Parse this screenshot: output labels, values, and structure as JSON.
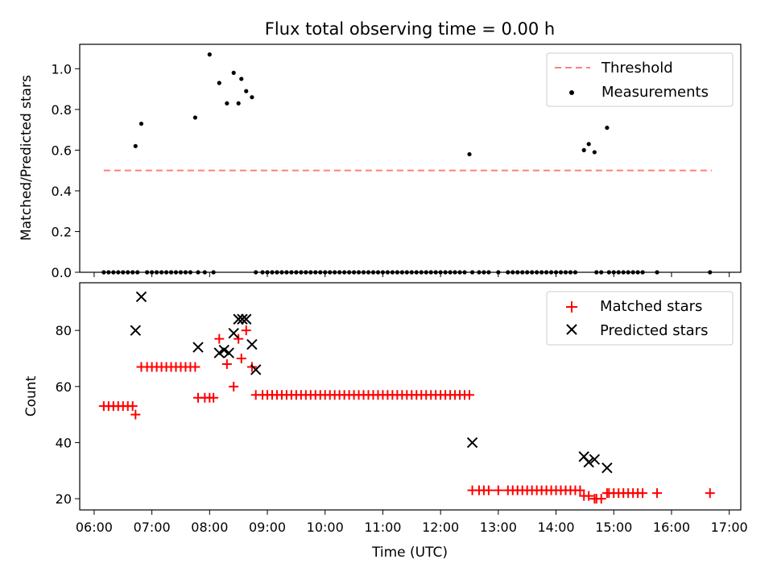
{
  "title": "Flux total observing time = 0.00 h",
  "xlabel": "Time (UTC)",
  "x_ticks": [
    "06:00",
    "07:00",
    "08:00",
    "09:00",
    "10:00",
    "11:00",
    "12:00",
    "13:00",
    "14:00",
    "15:00",
    "16:00",
    "17:00"
  ],
  "colors": {
    "threshold": "#ff7f7f",
    "measurements": "#000000",
    "matched": "#ff0000",
    "predicted": "#000000"
  },
  "chart_data": [
    {
      "type": "scatter",
      "ylabel": "Matched/Predicted stars",
      "xlim": [
        "05:45",
        "17:12"
      ],
      "ylim": [
        0,
        1.12
      ],
      "y_ticks": [
        "0.0",
        "0.2",
        "0.4",
        "0.6",
        "0.8",
        "1.0"
      ],
      "legend": "top-right",
      "threshold": {
        "name": "Threshold",
        "value": 0.5,
        "x_range": [
          "06:10",
          "16:42"
        ]
      },
      "series": [
        {
          "name": "Measurements",
          "x": [
            "06:10",
            "06:15",
            "06:20",
            "06:25",
            "06:30",
            "06:35",
            "06:40",
            "06:45",
            "06:43",
            "06:49",
            "06:55",
            "07:00",
            "07:05",
            "07:10",
            "07:15",
            "07:20",
            "07:25",
            "07:30",
            "07:35",
            "07:40",
            "07:45",
            "07:48",
            "07:55",
            "08:00",
            "08:04",
            "08:10",
            "08:18",
            "08:25",
            "08:30",
            "08:33",
            "08:38",
            "08:44",
            "08:48",
            "08:55",
            "09:00",
            "09:05",
            "09:10",
            "09:15",
            "09:20",
            "09:25",
            "09:30",
            "09:35",
            "09:40",
            "09:45",
            "09:50",
            "09:55",
            "10:00",
            "10:05",
            "10:10",
            "10:15",
            "10:20",
            "10:25",
            "10:30",
            "10:35",
            "10:40",
            "10:45",
            "10:50",
            "10:55",
            "11:00",
            "11:05",
            "11:10",
            "11:15",
            "11:20",
            "11:25",
            "11:30",
            "11:35",
            "11:40",
            "11:45",
            "11:50",
            "11:55",
            "12:00",
            "12:05",
            "12:10",
            "12:15",
            "12:20",
            "12:25",
            "12:30",
            "12:33",
            "12:40",
            "12:45",
            "12:50",
            "13:00",
            "13:10",
            "13:15",
            "13:20",
            "13:25",
            "13:30",
            "13:35",
            "13:40",
            "13:45",
            "13:50",
            "13:55",
            "14:00",
            "14:05",
            "14:10",
            "14:15",
            "14:20",
            "14:29",
            "14:34",
            "14:40",
            "14:42",
            "14:47",
            "14:53",
            "14:55",
            "15:00",
            "15:05",
            "15:10",
            "15:15",
            "15:20",
            "15:25",
            "15:30",
            "15:45",
            "16:40"
          ],
          "y": [
            0,
            0,
            0,
            0,
            0,
            0,
            0,
            0,
            0.62,
            0.73,
            0,
            0,
            0,
            0,
            0,
            0,
            0,
            0,
            0,
            0,
            0.76,
            0,
            0,
            1.07,
            0,
            0.93,
            0.83,
            0.98,
            0.83,
            0.95,
            0.89,
            0.86,
            0,
            0,
            0,
            0,
            0,
            0,
            0,
            0,
            0,
            0,
            0,
            0,
            0,
            0,
            0,
            0,
            0,
            0,
            0,
            0,
            0,
            0,
            0,
            0,
            0,
            0,
            0,
            0,
            0,
            0,
            0,
            0,
            0,
            0,
            0,
            0,
            0,
            0,
            0,
            0,
            0,
            0,
            0,
            0,
            0.58,
            0,
            0,
            0,
            0,
            0,
            0,
            0,
            0,
            0,
            0,
            0,
            0,
            0,
            0,
            0,
            0,
            0,
            0,
            0,
            0,
            0.6,
            0.63,
            0.59,
            0,
            0,
            0.71,
            0,
            0,
            0,
            0,
            0,
            0,
            0,
            0,
            0,
            0
          ]
        }
      ]
    },
    {
      "type": "scatter",
      "ylabel": "Count",
      "xlim": [
        "05:45",
        "17:12"
      ],
      "ylim": [
        16,
        97
      ],
      "y_ticks": [
        "20",
        "40",
        "60",
        "80"
      ],
      "legend": "top-right",
      "series": [
        {
          "name": "Matched stars",
          "marker": "+",
          "x": [
            "06:10",
            "06:15",
            "06:20",
            "06:25",
            "06:30",
            "06:35",
            "06:40",
            "06:43",
            "06:49",
            "06:55",
            "07:00",
            "07:05",
            "07:10",
            "07:15",
            "07:20",
            "07:25",
            "07:30",
            "07:35",
            "07:40",
            "07:45",
            "07:48",
            "07:55",
            "08:00",
            "08:04",
            "08:10",
            "08:18",
            "08:25",
            "08:30",
            "08:33",
            "08:38",
            "08:44",
            "08:48",
            "08:55",
            "09:00",
            "09:05",
            "09:10",
            "09:15",
            "09:20",
            "09:25",
            "09:30",
            "09:35",
            "09:40",
            "09:45",
            "09:50",
            "09:55",
            "10:00",
            "10:05",
            "10:10",
            "10:15",
            "10:20",
            "10:25",
            "10:30",
            "10:35",
            "10:40",
            "10:45",
            "10:50",
            "10:55",
            "11:00",
            "11:05",
            "11:10",
            "11:15",
            "11:20",
            "11:25",
            "11:30",
            "11:35",
            "11:40",
            "11:45",
            "11:50",
            "11:55",
            "12:00",
            "12:05",
            "12:10",
            "12:15",
            "12:20",
            "12:25",
            "12:30",
            "12:33",
            "12:40",
            "12:45",
            "12:50",
            "13:00",
            "13:10",
            "13:15",
            "13:20",
            "13:25",
            "13:30",
            "13:35",
            "13:40",
            "13:45",
            "13:50",
            "13:55",
            "14:00",
            "14:05",
            "14:10",
            "14:15",
            "14:20",
            "14:25",
            "14:29",
            "14:34",
            "14:40",
            "14:42",
            "14:47",
            "14:53",
            "14:55",
            "15:00",
            "15:05",
            "15:10",
            "15:15",
            "15:20",
            "15:25",
            "15:30",
            "15:45",
            "16:40"
          ],
          "y": [
            53,
            53,
            53,
            53,
            53,
            53,
            53,
            50,
            67,
            67,
            67,
            67,
            67,
            67,
            67,
            67,
            67,
            67,
            67,
            67,
            56,
            56,
            56,
            56,
            77,
            68,
            60,
            77,
            70,
            80,
            67,
            57,
            57,
            57,
            57,
            57,
            57,
            57,
            57,
            57,
            57,
            57,
            57,
            57,
            57,
            57,
            57,
            57,
            57,
            57,
            57,
            57,
            57,
            57,
            57,
            57,
            57,
            57,
            57,
            57,
            57,
            57,
            57,
            57,
            57,
            57,
            57,
            57,
            57,
            57,
            57,
            57,
            57,
            57,
            57,
            57,
            23,
            23,
            23,
            23,
            23,
            23,
            23,
            23,
            23,
            23,
            23,
            23,
            23,
            23,
            23,
            23,
            23,
            23,
            23,
            23,
            23,
            21,
            21,
            20,
            20,
            20,
            22,
            22,
            22,
            22,
            22,
            22,
            22,
            22,
            22,
            22,
            22
          ]
        },
        {
          "name": "Predicted stars",
          "marker": "x",
          "x": [
            "06:43",
            "06:49",
            "07:48",
            "08:10",
            "08:15",
            "08:20",
            "08:25",
            "08:30",
            "08:34",
            "08:38",
            "08:44",
            "08:48",
            "12:33",
            "14:29",
            "14:34",
            "14:40",
            "14:53"
          ],
          "y": [
            80,
            92,
            74,
            72,
            73,
            72,
            79,
            84,
            84,
            84,
            75,
            66,
            40,
            35,
            33,
            34,
            31
          ]
        }
      ]
    }
  ]
}
